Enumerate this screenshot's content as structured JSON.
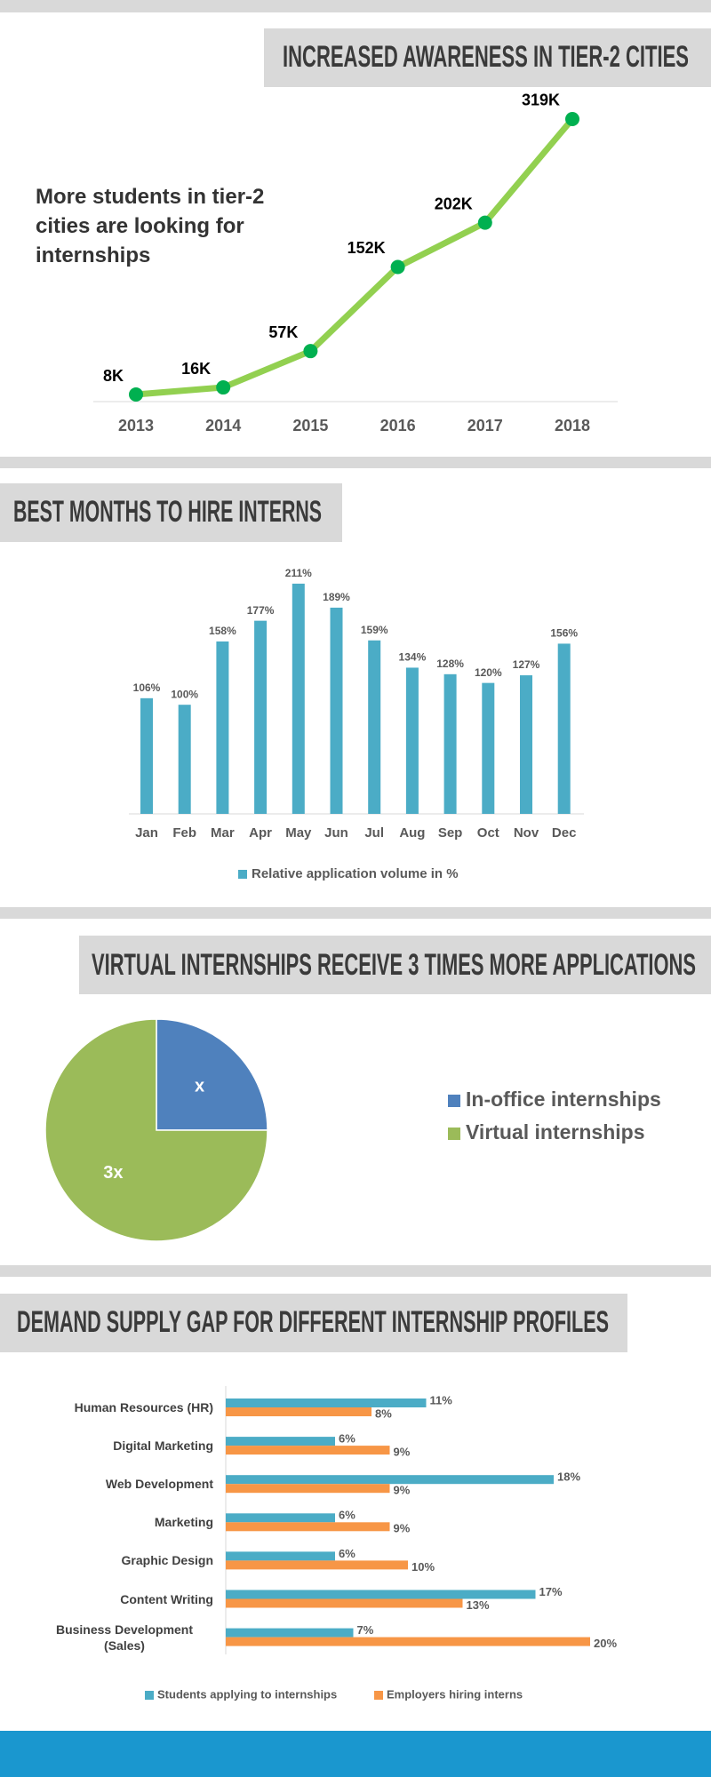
{
  "chart_data": [
    {
      "type": "line",
      "title": "INCREASED AWARENESS IN TIER-2 CITIES",
      "annotation": "More students in tier-2 cities are looking for internships",
      "categories": [
        "2013",
        "2014",
        "2015",
        "2016",
        "2017",
        "2018"
      ],
      "values": [
        8,
        16,
        57,
        152,
        202,
        319
      ],
      "value_labels": [
        "8K",
        "16K",
        "57K",
        "152K",
        "202K",
        "319K"
      ],
      "ylim": [
        0,
        320
      ],
      "line_color": "#92d050",
      "marker_color": "#00b050"
    },
    {
      "type": "bar",
      "orientation": "vertical",
      "title": "BEST MONTHS TO HIRE INTERNS",
      "categories": [
        "Jan",
        "Feb",
        "Mar",
        "Apr",
        "May",
        "Jun",
        "Jul",
        "Aug",
        "Sep",
        "Oct",
        "Nov",
        "Dec"
      ],
      "series": [
        {
          "name": "Relative application volume in %",
          "color": "#4bacc6",
          "values": [
            106,
            100,
            158,
            177,
            211,
            189,
            159,
            134,
            128,
            120,
            127,
            156
          ],
          "value_labels": [
            "106%",
            "100%",
            "158%",
            "177%",
            "211%",
            "189%",
            "159%",
            "134%",
            "128%",
            "120%",
            "127%",
            "156%"
          ]
        }
      ],
      "ylim": [
        0,
        250
      ],
      "legend": "bottom"
    },
    {
      "type": "pie",
      "title": "VIRTUAL INTERNSHIPS RECEIVE 3 TIMES MORE APPLICATIONS",
      "categories": [
        "In-office internships",
        "Virtual internships"
      ],
      "values": [
        1,
        3
      ],
      "value_labels": [
        "x",
        "3x"
      ],
      "colors": [
        "#4f81bd",
        "#9bbb59"
      ],
      "legend": "right"
    },
    {
      "type": "bar",
      "orientation": "horizontal",
      "title": "DEMAND SUPPLY GAP FOR DIFFERENT INTERNSHIP PROFILES",
      "categories": [
        "Human Resources (HR)",
        "Digital Marketing",
        "Web Development",
        "Marketing",
        "Graphic Design",
        "Content Writing",
        "Business Development (Sales)"
      ],
      "series": [
        {
          "name": "Students applying to internships",
          "color": "#4bacc6",
          "values": [
            11,
            6,
            18,
            6,
            6,
            17,
            7
          ],
          "value_labels": [
            "11%",
            "6%",
            "18%",
            "6%",
            "6%",
            "17%",
            "7%"
          ]
        },
        {
          "name": "Employers hiring interns",
          "color": "#f79646",
          "values": [
            8,
            9,
            9,
            9,
            10,
            13,
            20
          ],
          "value_labels": [
            "8%",
            "9%",
            "9%",
            "9%",
            "10%",
            "13%",
            "20%"
          ]
        }
      ],
      "xlim": [
        0,
        20
      ],
      "legend": "bottom"
    }
  ]
}
